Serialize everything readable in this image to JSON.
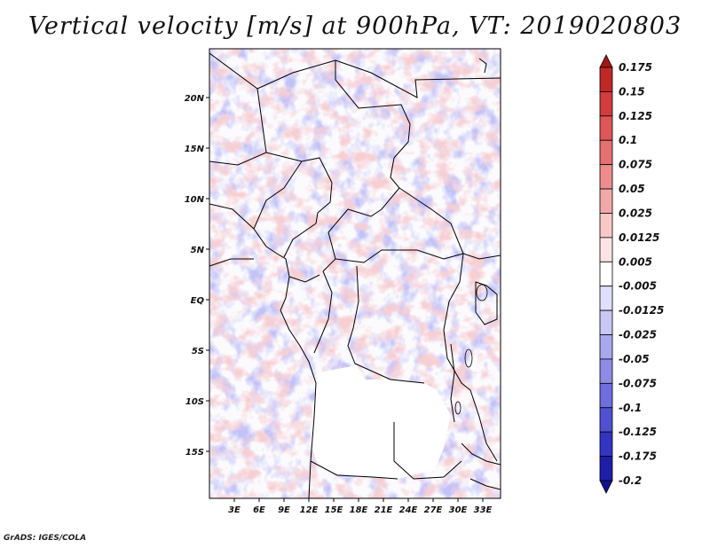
{
  "title": "Vertical velocity [m/s] at 900hPa, VT: 2019020803",
  "credit": "GrADS: IGES/COLA",
  "map": {
    "lat_ticks": [
      "20N",
      "15N",
      "10N",
      "5N",
      "EQ",
      "5S",
      "10S",
      "15S"
    ],
    "lon_ticks": [
      "3E",
      "6E",
      "9E",
      "12E",
      "15E",
      "18E",
      "21E",
      "24E",
      "27E",
      "30E",
      "33E"
    ]
  },
  "colorbar": {
    "labels": [
      "0.175",
      "0.15",
      "0.125",
      "0.1",
      "0.075",
      "0.05",
      "0.025",
      "0.0125",
      "0.005",
      "-0.005",
      "-0.0125",
      "-0.025",
      "-0.05",
      "-0.075",
      "-0.1",
      "-0.125",
      "-0.175",
      "-0.2"
    ],
    "colors": [
      "#a01818",
      "#c02828",
      "#d23c3c",
      "#de5656",
      "#e57070",
      "#ec8c8c",
      "#f2a8a8",
      "#f8c8c8",
      "#fce4e4",
      "#ffffff",
      "#e0e0fc",
      "#c8c8f6",
      "#a8a8ee",
      "#8c8ce6",
      "#6e6ede",
      "#5050d2",
      "#3434c2",
      "#1e1ea8",
      "#121290"
    ]
  }
}
